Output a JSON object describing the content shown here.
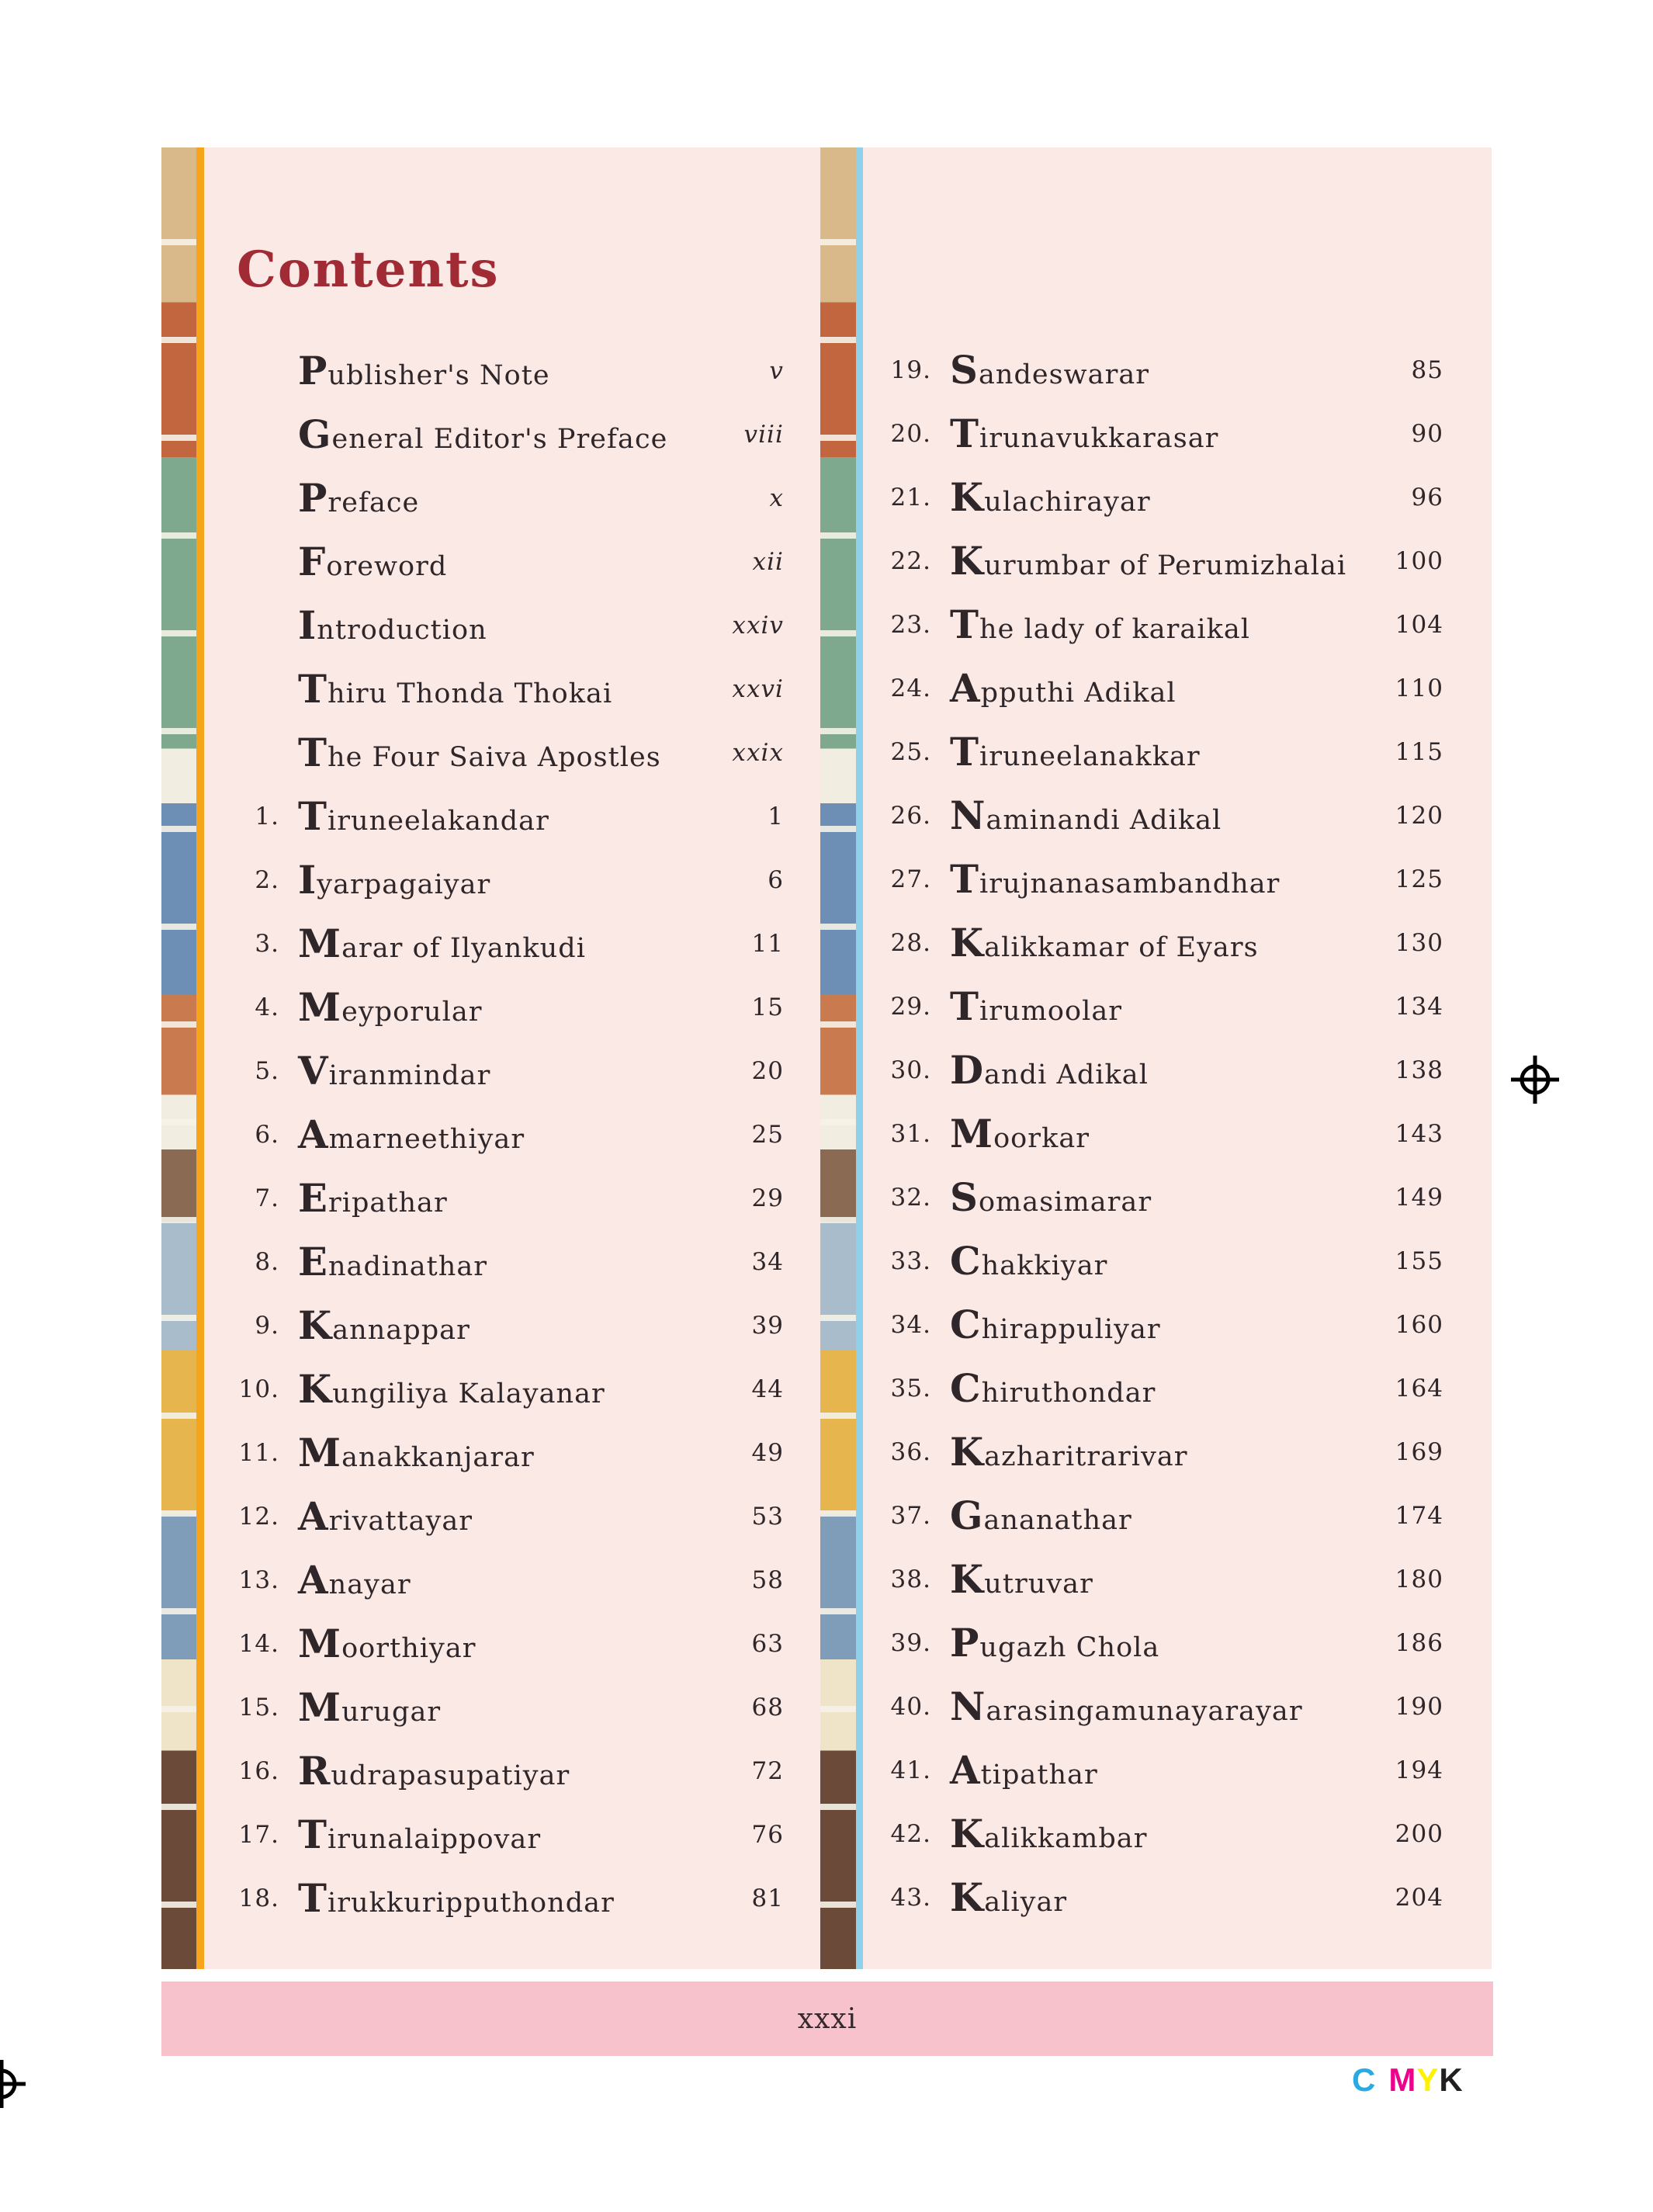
{
  "page": {
    "title": "Contents",
    "footer_page": "xxxi"
  },
  "print_mark": {
    "c": "C",
    "m": "M",
    "y": "Y",
    "k": "K"
  },
  "colors": {
    "sheet_pink": "#fbe9e6",
    "footer_pink": "#f8c2cd",
    "title_red": "#a12b34",
    "text_dark": "#2f2629",
    "accent_yellow_line": "#f6a41c",
    "accent_blue_line": "#8fd0ea",
    "cmyk_c": "#29abe2",
    "cmyk_m": "#ec008c",
    "cmyk_y": "#fff200",
    "cmyk_k": "#231f20",
    "strip_palette": [
      "#d9b98a",
      "#c2663f",
      "#7fa98e",
      "#f2ede1",
      "#6d8fb5",
      "#c97a4e",
      "#8a6a52",
      "#a9bccb",
      "#e6b54d",
      "#7f9cb8",
      "#efe3c8",
      "#6b4a3a"
    ]
  },
  "front_matter": [
    {
      "label": "Publisher's Note",
      "page": "v",
      "roman": true
    },
    {
      "label": "General Editor's Preface",
      "page": "viii",
      "roman": true
    },
    {
      "label": "Preface",
      "page": "x",
      "roman": true
    },
    {
      "label": "Foreword",
      "page": "xii",
      "roman": true
    },
    {
      "label": "Introduction",
      "page": "xxiv",
      "roman": true
    },
    {
      "label": "Thiru Thonda Thokai",
      "page": "xxvi",
      "roman": true
    },
    {
      "label": "The Four Saiva Apostles",
      "page": "xxix",
      "roman": true
    }
  ],
  "left_entries": [
    {
      "num": "1.",
      "label": "Tiruneelakandar",
      "page": "1"
    },
    {
      "num": "2.",
      "label": "Iyarpagaiyar",
      "page": "6"
    },
    {
      "num": "3.",
      "label": "Marar of Ilyankudi",
      "page": "11"
    },
    {
      "num": "4.",
      "label": "Meyporular",
      "page": "15"
    },
    {
      "num": "5.",
      "label": "Viranmindar",
      "page": "20"
    },
    {
      "num": "6.",
      "label": "Amarneethiyar",
      "page": "25"
    },
    {
      "num": "7.",
      "label": "Eripathar",
      "page": "29"
    },
    {
      "num": "8.",
      "label": "Enadinathar",
      "page": "34"
    },
    {
      "num": "9.",
      "label": "Kannappar",
      "page": "39"
    },
    {
      "num": "10.",
      "label": "Kungiliya Kalayanar",
      "page": "44"
    },
    {
      "num": "11.",
      "label": "Manakkanjarar",
      "page": "49"
    },
    {
      "num": "12.",
      "label": "Arivattayar",
      "page": "53"
    },
    {
      "num": "13.",
      "label": "Anayar",
      "page": "58"
    },
    {
      "num": "14.",
      "label": "Moorthiyar",
      "page": "63"
    },
    {
      "num": "15.",
      "label": "Murugar",
      "page": "68"
    },
    {
      "num": "16.",
      "label": "Rudrapasupatiyar",
      "page": "72"
    },
    {
      "num": "17.",
      "label": "Tirunalaippovar",
      "page": "76"
    },
    {
      "num": "18.",
      "label": "Tirukkuripputhondar",
      "page": "81"
    }
  ],
  "right_entries": [
    {
      "num": "19.",
      "label": "Sandeswarar",
      "page": "85"
    },
    {
      "num": "20.",
      "label": "Tirunavukkarasar",
      "page": "90"
    },
    {
      "num": "21.",
      "label": "Kulachirayar",
      "page": "96"
    },
    {
      "num": "22.",
      "label": "Kurumbar of Perumizhalai",
      "page": "100"
    },
    {
      "num": "23.",
      "label": "The lady of karaikal",
      "page": "104"
    },
    {
      "num": "24.",
      "label": "Apputhi Adikal",
      "page": "110"
    },
    {
      "num": "25.",
      "label": "Tiruneelanakkar",
      "page": "115"
    },
    {
      "num": "26.",
      "label": "Naminandi Adikal",
      "page": "120"
    },
    {
      "num": "27.",
      "label": "Tirujnanasambandhar",
      "page": "125"
    },
    {
      "num": "28.",
      "label": "Kalikkamar of Eyars",
      "page": "130"
    },
    {
      "num": "29.",
      "label": "Tirumoolar",
      "page": "134"
    },
    {
      "num": "30.",
      "label": "Dandi Adikal",
      "page": "138"
    },
    {
      "num": "31.",
      "label": "Moorkar",
      "page": "143"
    },
    {
      "num": "32.",
      "label": "Somasimarar",
      "page": "149"
    },
    {
      "num": "33.",
      "label": "Chakkiyar",
      "page": "155"
    },
    {
      "num": "34.",
      "label": "Chirappuliyar",
      "page": "160"
    },
    {
      "num": "35.",
      "label": "Chiruthondar",
      "page": "164"
    },
    {
      "num": "36.",
      "label": "Kazharitrarivar",
      "page": "169"
    },
    {
      "num": "37.",
      "label": "Gananathar",
      "page": "174"
    },
    {
      "num": "38.",
      "label": "Kutruvar",
      "page": "180"
    },
    {
      "num": "39.",
      "label": "Pugazh Chola",
      "page": "186"
    },
    {
      "num": "40.",
      "label": "Narasingamunayarayar",
      "page": "190"
    },
    {
      "num": "41.",
      "label": "Atipathar",
      "page": "194"
    },
    {
      "num": "42.",
      "label": "Kalikkambar",
      "page": "200"
    },
    {
      "num": "43.",
      "label": "Kaliyar",
      "page": "204"
    }
  ]
}
